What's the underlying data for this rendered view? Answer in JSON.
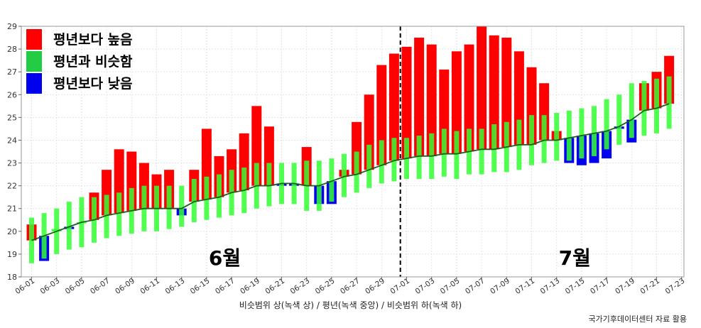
{
  "chart_data": {
    "type": "bar",
    "xlabel": "비슷범위 상(녹색 상) / 평년(녹색 중앙) / 비슷범위 하(녹색 하)",
    "ylim": [
      18,
      29
    ],
    "yticks": [
      18,
      19,
      20,
      21,
      22,
      23,
      24,
      25,
      26,
      27,
      28,
      29
    ],
    "grid": true,
    "legend_position": "top-left",
    "legend": [
      {
        "label": "평년보다 높음",
        "color": "#ff0000"
      },
      {
        "label": "평년과 비슷함",
        "color": "#22cc44"
      },
      {
        "label": "평년보다 낮음",
        "color": "#0000ee"
      }
    ],
    "colors": {
      "above": "#ff0000",
      "similar": "#33ff33",
      "below": "#0000ee",
      "normal_line": "#1a5e1a"
    },
    "x_ticks": [
      "06-01",
      "06-03",
      "06-05",
      "06-07",
      "06-09",
      "06-11",
      "06-13",
      "06-15",
      "06-17",
      "06-19",
      "06-21",
      "06-23",
      "06-25",
      "06-27",
      "06-29",
      "07-01",
      "07-03",
      "07-05",
      "07-07",
      "07-09",
      "07-11",
      "07-13",
      "07-15",
      "07-17",
      "07-19",
      "07-21",
      "07-23"
    ],
    "month_labels": [
      {
        "text": "6월",
        "date": "06-16"
      },
      {
        "text": "7월",
        "date": "07-14"
      }
    ],
    "month_divider": "06-30",
    "dates": [
      "06-01",
      "06-02",
      "06-03",
      "06-04",
      "06-05",
      "06-06",
      "06-07",
      "06-08",
      "06-09",
      "06-10",
      "06-11",
      "06-12",
      "06-13",
      "06-14",
      "06-15",
      "06-16",
      "06-17",
      "06-18",
      "06-19",
      "06-20",
      "06-21",
      "06-22",
      "06-23",
      "06-24",
      "06-25",
      "06-26",
      "06-27",
      "06-28",
      "06-29",
      "06-30",
      "07-01",
      "07-02",
      "07-03",
      "07-04",
      "07-05",
      "07-06",
      "07-07",
      "07-08",
      "07-09",
      "07-10",
      "07-11",
      "07-12",
      "07-13",
      "07-14",
      "07-15",
      "07-16",
      "07-17",
      "07-18",
      "07-19",
      "07-20",
      "07-21",
      "07-22"
    ],
    "series": [
      {
        "name": "평년",
        "values": [
          19.6,
          19.8,
          20.0,
          20.2,
          20.4,
          20.5,
          20.7,
          20.8,
          20.9,
          21.0,
          21.0,
          21.0,
          21.0,
          21.3,
          21.4,
          21.5,
          21.7,
          21.8,
          22.0,
          22.0,
          22.1,
          22.1,
          22.0,
          22.0,
          22.2,
          22.4,
          22.5,
          22.7,
          22.9,
          23.1,
          23.2,
          23.3,
          23.3,
          23.4,
          23.4,
          23.5,
          23.6,
          23.6,
          23.7,
          23.8,
          23.8,
          24.0,
          24.0,
          24.1,
          24.2,
          24.3,
          24.4,
          24.6,
          24.9,
          25.3,
          25.4,
          25.6
        ]
      },
      {
        "name": "비슷범위 상",
        "values": [
          20.6,
          20.8,
          21.0,
          21.3,
          21.5,
          21.5,
          21.6,
          21.7,
          21.9,
          22.0,
          22.0,
          22.0,
          22.0,
          22.3,
          22.4,
          22.5,
          22.7,
          22.8,
          23.0,
          23.0,
          23.0,
          23.0,
          23.1,
          23.1,
          23.2,
          23.4,
          23.5,
          23.8,
          24.0,
          24.1,
          24.1,
          24.2,
          24.3,
          24.5,
          24.4,
          24.5,
          24.5,
          24.7,
          24.8,
          24.9,
          25.1,
          25.1,
          25.2,
          25.3,
          25.4,
          25.5,
          25.8,
          26.0,
          26.5,
          26.6,
          26.7,
          26.8
        ]
      },
      {
        "name": "비슷범위 하",
        "values": [
          18.6,
          18.8,
          19.0,
          19.2,
          19.3,
          19.5,
          19.7,
          19.8,
          19.9,
          20.0,
          20.0,
          20.1,
          20.2,
          20.4,
          20.5,
          20.6,
          20.7,
          20.8,
          21.0,
          21.1,
          21.2,
          21.2,
          20.9,
          20.9,
          21.3,
          21.5,
          21.7,
          21.9,
          22.1,
          22.2,
          22.3,
          22.3,
          22.3,
          22.4,
          22.3,
          22.5,
          22.5,
          22.6,
          22.6,
          22.7,
          22.9,
          23.0,
          23.1,
          23.1,
          23.2,
          23.3,
          23.6,
          23.8,
          24.1,
          24.2,
          24.3,
          24.5
        ]
      },
      {
        "name": "관측",
        "values": [
          20.3,
          18.7,
          20.1,
          20.1,
          20.4,
          21.7,
          22.7,
          23.6,
          23.5,
          23.0,
          22.5,
          22.7,
          20.7,
          22.7,
          24.5,
          23.3,
          23.6,
          24.3,
          25.5,
          24.6,
          22.0,
          22.0,
          23.7,
          21.2,
          21.2,
          22.7,
          24.8,
          26.0,
          27.3,
          27.8,
          28.1,
          28.5,
          28.2,
          27.1,
          27.9,
          28.2,
          29.0,
          28.6,
          28.5,
          27.9,
          27.2,
          26.5,
          24.4,
          23.0,
          22.9,
          23.0,
          23.2,
          24.5,
          23.9,
          26.5,
          27.0,
          27.7
        ]
      },
      {
        "name": "분류",
        "values": [
          "above",
          "below",
          "similar",
          "below",
          "similar",
          "above",
          "above",
          "above",
          "above",
          "above",
          "above",
          "above",
          "below",
          "above",
          "above",
          "above",
          "above",
          "above",
          "above",
          "above",
          "below",
          "below",
          "above",
          "below",
          "below",
          "above",
          "above",
          "above",
          "above",
          "above",
          "above",
          "above",
          "above",
          "above",
          "above",
          "above",
          "above",
          "above",
          "above",
          "above",
          "above",
          "above",
          "above",
          "below",
          "below",
          "below",
          "below",
          "below",
          "below",
          "above",
          "above",
          "above"
        ]
      }
    ]
  },
  "source_note": "국가기후데이터센터 자료 활용"
}
